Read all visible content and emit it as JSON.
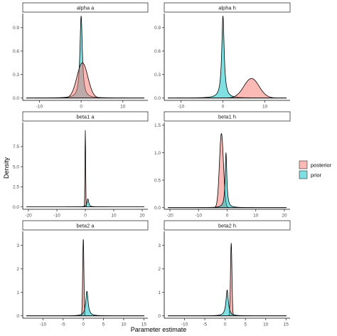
{
  "figure": {
    "xlabel": "Parameter estimate",
    "ylabel": "Density",
    "legend": {
      "placement": "right",
      "items": [
        {
          "label": "posterior",
          "color": "#f8766d"
        },
        {
          "label": "prior",
          "color": "#00bfc4"
        }
      ]
    }
  },
  "chart_data": [
    {
      "type": "area",
      "title": "alpha a",
      "xlim": [
        -14,
        16
      ],
      "ylim": [
        -0.03,
        1.08
      ],
      "xticks": [
        "-10",
        "0",
        "10"
      ],
      "yticks": [
        "0.0",
        "0.3",
        "0.6",
        "0.9"
      ],
      "grid": false,
      "series": [
        {
          "name": "prior",
          "peak_x": 0,
          "peak_y": 1.05,
          "width": 0.35,
          "shape": "heavy-tailed"
        },
        {
          "name": "posterior",
          "peak_x": 0.3,
          "peak_y": 0.45,
          "width": 1.3,
          "shape": "gaussian"
        }
      ]
    },
    {
      "type": "area",
      "title": "alpha h",
      "xlim": [
        -14,
        16
      ],
      "ylim": [
        -0.03,
        1.08
      ],
      "xticks": [
        "-10",
        "0",
        "10"
      ],
      "yticks": [
        "0.0",
        "0.3",
        "0.6",
        "0.9"
      ],
      "grid": false,
      "series": [
        {
          "name": "prior",
          "peak_x": 0,
          "peak_y": 1.05,
          "width": 0.35,
          "shape": "heavy-tailed"
        },
        {
          "name": "posterior",
          "peak_x": 6.8,
          "peak_y": 0.25,
          "width": 1.8,
          "shape": "gaussian"
        }
      ]
    },
    {
      "type": "area",
      "title": "beta1 a",
      "xlim": [
        -22,
        22
      ],
      "ylim": [
        -0.3,
        10.5
      ],
      "xticks": [
        "-20",
        "-10",
        "0",
        "10",
        "20"
      ],
      "yticks": [
        "0.0",
        "2.5",
        "5.0",
        "7.5"
      ],
      "grid": false,
      "series": [
        {
          "name": "posterior",
          "peak_x": 0,
          "peak_y": 9.5,
          "width": 0.12,
          "shape": "gaussian"
        },
        {
          "name": "prior",
          "peak_x": 0.9,
          "peak_y": 1.0,
          "width": 0.35,
          "shape": "heavy-tailed"
        }
      ]
    },
    {
      "type": "area",
      "title": "beta1 h",
      "xlim": [
        -22,
        22
      ],
      "ylim": [
        -0.03,
        1.55
      ],
      "xticks": [
        "-20",
        "-10",
        "0",
        "10",
        "20"
      ],
      "yticks": [
        "0.0",
        "0.5",
        "1.0",
        "1.5"
      ],
      "grid": false,
      "series": [
        {
          "name": "posterior",
          "peak_x": -2.0,
          "peak_y": 1.35,
          "width": 0.7,
          "shape": "gaussian"
        },
        {
          "name": "prior",
          "peak_x": -0.4,
          "peak_y": 1.0,
          "width": 0.35,
          "shape": "heavy-tailed"
        }
      ]
    },
    {
      "type": "area",
      "title": "beta2 a",
      "xlim": [
        -15,
        16
      ],
      "ylim": [
        -0.1,
        3.6
      ],
      "xticks": [
        "-10",
        "-5",
        "0",
        "5",
        "10",
        "15"
      ],
      "yticks": [
        "0",
        "1",
        "2",
        "3"
      ],
      "grid": false,
      "series": [
        {
          "name": "posterior",
          "peak_x": 0,
          "peak_y": 3.3,
          "width": 0.15,
          "shape": "gaussian"
        },
        {
          "name": "prior",
          "peak_x": 0.9,
          "peak_y": 1.05,
          "width": 0.35,
          "shape": "heavy-tailed"
        }
      ]
    },
    {
      "type": "area",
      "title": "beta2 h",
      "xlim": [
        -15,
        16
      ],
      "ylim": [
        -0.1,
        3.6
      ],
      "xticks": [
        "-10",
        "-5",
        "0",
        "5",
        "10",
        "15"
      ],
      "yticks": [
        "0",
        "1",
        "2",
        "3"
      ],
      "grid": false,
      "series": [
        {
          "name": "posterior",
          "peak_x": 1.5,
          "peak_y": 3.1,
          "width": 0.18,
          "shape": "gaussian"
        },
        {
          "name": "prior",
          "peak_x": 0.5,
          "peak_y": 1.1,
          "width": 0.35,
          "shape": "heavy-tailed"
        }
      ]
    }
  ]
}
